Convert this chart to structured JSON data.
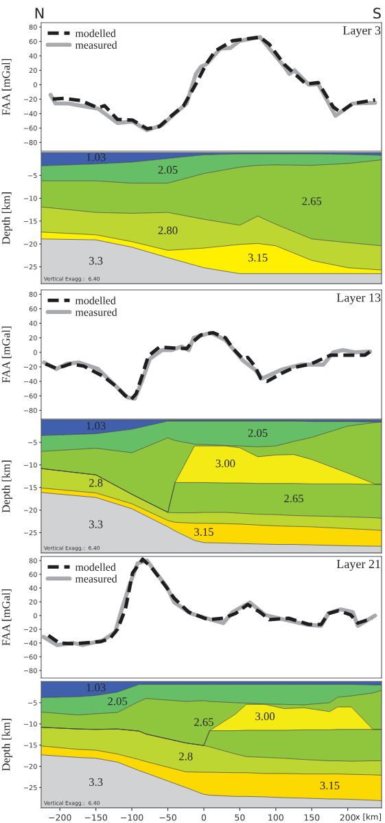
{
  "chart_data": [
    {
      "type": "line",
      "title": "Layer 3",
      "ylabel": "FAA [mGal]",
      "annotations": [
        "N",
        "S"
      ],
      "xlim": [
        -226,
        247
      ],
      "ylim": [
        -92,
        86
      ],
      "yticks": [
        -80,
        -60,
        -40,
        -20,
        0,
        20,
        40,
        60,
        80
      ],
      "tick_labels": "y",
      "legend": "top left",
      "series": [
        {
          "name": "modelled",
          "color": "#1e1e1e",
          "line_style": "dashed",
          "x": [
            -210,
            -194,
            -171,
            -147,
            -138,
            -120,
            -99,
            -79,
            -62,
            -45,
            -28,
            -11,
            3,
            16,
            40,
            78,
            91,
            112,
            142,
            159,
            180,
            190,
            207,
            238
          ],
          "values": [
            -20,
            -19,
            -22,
            -32,
            -29,
            -48,
            -49,
            -61,
            -58,
            -43,
            -29,
            1,
            28,
            47,
            61,
            66,
            56,
            28,
            1,
            3,
            -31,
            -38,
            -26,
            -21
          ]
        },
        {
          "name": "measured",
          "color": "#a9aaad",
          "line_style": "solid",
          "x": [
            -213,
            -206,
            -188,
            -171,
            -147,
            -120,
            -99,
            -79,
            -58,
            -45,
            -24,
            -11,
            -4,
            3,
            23,
            37,
            50,
            78,
            112,
            119,
            126,
            146,
            159,
            183,
            207,
            238
          ],
          "values": [
            -14,
            -26,
            -26,
            -29,
            -33,
            -53,
            -51,
            -63,
            -56,
            -44,
            -26,
            15,
            25,
            28,
            50,
            51,
            61,
            66,
            25,
            15,
            20,
            0,
            1,
            -43,
            -26,
            -25
          ]
        }
      ]
    },
    {
      "type": "area",
      "stacked": true,
      "ylabel": "Depth [km]",
      "xlim": [
        -226,
        247
      ],
      "ylim": [
        -28.7,
        0
      ],
      "yticks": [
        -25,
        -20,
        -15,
        -10,
        -5
      ],
      "tick_labels": "y",
      "x": [
        -226,
        -150,
        -100,
        -50,
        0,
        50,
        75,
        100,
        150,
        200,
        247
      ],
      "annotations": [
        "Vertical Exagg.:  6.40"
      ],
      "series": [
        {
          "name": "1.03",
          "color": "#4060ae",
          "values": [
            -2.9,
            -2.5,
            -2.1,
            -1.3,
            -0.5,
            -0.3,
            -0.3,
            -0.3,
            -0.3,
            -0.4,
            -0.6
          ]
        },
        {
          "name": "2.05",
          "color": "#66be66",
          "values": [
            -3.3,
            -3.7,
            -4.6,
            -5.4,
            -4.1,
            -2.9,
            -2.5,
            -2.4,
            -2.5,
            -2.0,
            -1.0
          ]
        },
        {
          "name": "2.65",
          "color": "#8fc63e",
          "values": [
            -5.7,
            -6.9,
            -6.6,
            -6.4,
            -10.0,
            -12.7,
            -11.1,
            -13.0,
            -16.1,
            -17.3,
            -18.8
          ]
        },
        {
          "name": "2.80",
          "color": "#bdd631",
          "values": [
            -5.5,
            -4.9,
            -6.2,
            -8.3,
            -6.3,
            -4.2,
            -6.0,
            -4.7,
            -4.7,
            -5.5,
            -5.3
          ]
        },
        {
          "name": "3.15",
          "color": "#fff000",
          "values": [
            -1.5,
            -1.1,
            -1.2,
            -1.6,
            -4.3,
            -6.4,
            -6.6,
            -6.1,
            -2.9,
            -1.3,
            -0.8
          ]
        },
        {
          "name": "3.3",
          "color": "#d1d2d4",
          "values": [
            -9.8,
            -9.6,
            -8.0,
            -5.7,
            -3.5,
            -2.2,
            -2.2,
            -2.2,
            -2.2,
            -2.2,
            -2.2
          ]
        }
      ]
    },
    {
      "type": "line",
      "title": "Layer 13",
      "ylabel": "FAA [mGal]",
      "xlim": [
        -226,
        247
      ],
      "ylim": [
        -92,
        86
      ],
      "yticks": [
        -80,
        -60,
        -40,
        -20,
        0,
        20,
        40,
        60,
        80
      ],
      "tick_labels": "y",
      "legend": "top left",
      "series": [
        {
          "name": "modelled",
          "color": "#1e1e1e",
          "line_style": "dashed",
          "x": [
            -220,
            -205,
            -194,
            -186,
            -167,
            -140,
            -123,
            -109,
            -101,
            -94,
            -86,
            -77,
            -62,
            -24,
            -18,
            -4,
            13,
            30,
            40,
            54,
            61,
            71,
            79,
            88,
            108,
            125,
            149,
            176,
            193,
            224,
            231
          ],
          "values": [
            -16,
            -22,
            -19,
            -16,
            -19,
            -33,
            -46,
            -60,
            -65,
            -57,
            -33,
            -5,
            7,
            5,
            12,
            24,
            27,
            20,
            6,
            -9,
            -7,
            -19,
            -36,
            -40,
            -29,
            -21,
            -16,
            -4,
            -4,
            -4,
            1
          ]
        },
        {
          "name": "measured",
          "color": "#a9aaad",
          "line_style": "solid",
          "x": [
            -222,
            -205,
            -191,
            -174,
            -147,
            -123,
            -106,
            -96,
            -86,
            -75,
            -58,
            -45,
            -31,
            -21,
            -14,
            10,
            30,
            54,
            71,
            81,
            108,
            135,
            166,
            180,
            193,
            210,
            231
          ],
          "values": [
            -14,
            -23,
            -16,
            -14,
            -23,
            -46,
            -62,
            -64,
            -40,
            -9,
            3,
            3,
            8,
            3,
            20,
            27,
            17,
            -11,
            -24,
            -36,
            -24,
            -17,
            -17,
            0,
            3,
            0,
            1
          ]
        }
      ]
    },
    {
      "type": "area",
      "stacked": true,
      "ylabel": "Depth [km]",
      "xlim": [
        -226,
        247
      ],
      "ylim": [
        -29.5,
        0
      ],
      "yticks": [
        -25,
        -20,
        -15,
        -10,
        -5
      ],
      "tick_labels": "y",
      "x": [
        -226,
        -150,
        -100,
        -50,
        -40,
        -13,
        0,
        30,
        50,
        75,
        100,
        125,
        150,
        200,
        239,
        247
      ],
      "annotations": [
        "Vertical Exagg.:  6.40"
      ],
      "series": [
        {
          "name": "1.03",
          "color": "#4060ae",
          "values": [
            -3.5,
            -3.1,
            -2.1,
            -0.3,
            -0.3,
            -0.3,
            -0.3,
            -0.3,
            -0.3,
            -0.3,
            -0.3,
            -0.3,
            -0.4,
            -0.4,
            -0.5,
            -0.5
          ]
        },
        {
          "name": "2.05",
          "color": "#66be66",
          "values": [
            -3.5,
            -3.2,
            -5.2,
            -3.7,
            -4.3,
            -5.1,
            -5.2,
            -5.4,
            -5.5,
            -5.7,
            -5.5,
            -4.5,
            -3.5,
            -1.0,
            -0.1,
            0.0
          ]
        },
        {
          "color": "#8fc63e",
          "values": [
            -3.8,
            -5.9,
            -9.2,
            -16.5,
            -9.3,
            -0.4,
            -0.3,
            -0.1,
            -0.4,
            -2.2,
            -2.0,
            -2.9,
            -4.9,
            -10.4,
            -13.7,
            -13.8
          ]
        },
        {
          "name": "3.00",
          "color": "#f4ea14",
          "values": [
            0,
            0,
            0,
            0,
            0,
            -8.1,
            -8.1,
            -8.2,
            -7.8,
            -5.9,
            -6.3,
            -6.4,
            -5.4,
            -2.4,
            0,
            0
          ]
        },
        {
          "name": "2.65",
          "color": "#8fc63e",
          "values": [
            0,
            0,
            0,
            0,
            -6.7,
            -6.7,
            -6.6,
            -6.5,
            -6.7,
            -6.8,
            -6.9,
            -7.1,
            -7.1,
            -7.3,
            -7.4,
            -7.5
          ]
        },
        {
          "name": "2.8",
          "color": "#bdd631",
          "values": [
            -4.3,
            -4.0,
            -2.1,
            -1.8,
            -2.1,
            -2.3,
            -2.4,
            -2.5,
            -2.4,
            -2.4,
            -2.5,
            -2.4,
            -2.4,
            -2.6,
            -2.7,
            -2.7
          ]
        },
        {
          "name": "3.15",
          "color": "#fcd900",
          "values": [
            -1.0,
            -1.0,
            -1.1,
            -1.4,
            -1.9,
            -3.8,
            -4.3,
            -4.3,
            -4.3,
            -4.2,
            -4.1,
            -4.0,
            -4.0,
            -3.8,
            -3.6,
            -3.5
          ]
        },
        {
          "name": "3.3",
          "color": "#d1d2d4",
          "values": [
            -13.4,
            -12.3,
            -9.8,
            -5.8,
            -4.9,
            -2.8,
            -2.3,
            -2.2,
            -2.1,
            -2.0,
            -1.9,
            -1.9,
            -1.8,
            -1.6,
            -1.5,
            -1.5
          ]
        }
      ]
    },
    {
      "type": "line",
      "title": "Layer 21",
      "ylabel": "FAA [mGal]",
      "xlim": [
        -226,
        247
      ],
      "ylim": [
        -91,
        86
      ],
      "yticks": [
        -80,
        -60,
        -40,
        -20,
        0,
        20,
        40,
        60,
        80
      ],
      "tick_labels": "y",
      "legend": "top left",
      "series": [
        {
          "name": "modelled",
          "color": "#1e1e1e",
          "line_style": "dashed",
          "x": [
            -216,
            -201,
            -181,
            -143,
            -130,
            -120,
            -109,
            -99,
            -85,
            -72,
            -54,
            -41,
            -21,
            6,
            27,
            44,
            61,
            78,
            91,
            118,
            146,
            163,
            173,
            187,
            204,
            214,
            234
          ],
          "values": [
            -29,
            -40,
            -41,
            -38,
            -33,
            -20,
            9,
            62,
            82,
            69,
            44,
            25,
            5,
            -6,
            -4,
            3,
            16,
            5,
            -6,
            -4,
            -13,
            -13,
            3,
            7,
            1,
            -11,
            -4
          ]
        },
        {
          "name": "measured",
          "color": "#a9aaad",
          "line_style": "solid",
          "x": [
            -223,
            -204,
            -181,
            -168,
            -140,
            -123,
            -114,
            -102,
            -92,
            -79,
            -51,
            -41,
            -18,
            10,
            27,
            40,
            64,
            85,
            112,
            142,
            163,
            173,
            190,
            207,
            214,
            238
          ],
          "values": [
            -31,
            -43,
            -40,
            -43,
            -36,
            -24,
            9,
            48,
            76,
            80,
            41,
            19,
            3,
            -6,
            -11,
            5,
            19,
            1,
            -6,
            -13,
            -15,
            3,
            9,
            5,
            -15,
            0
          ]
        }
      ]
    },
    {
      "type": "area",
      "stacked": true,
      "ylabel": "Depth [km]",
      "xlabel": "x [km]",
      "xlim": [
        -226,
        247
      ],
      "ylim": [
        -29.8,
        0
      ],
      "yticks": [
        -25,
        -20,
        -15,
        -10,
        -5
      ],
      "xticks": [
        -200,
        -150,
        -100,
        -50,
        0,
        50,
        100,
        150,
        200
      ],
      "x": [
        -226,
        -175,
        -150,
        -120,
        -90,
        -80,
        -25,
        0,
        8,
        44,
        59,
        85,
        112,
        139,
        175,
        186,
        205,
        235,
        247
      ],
      "annotations": [
        "Vertical Exagg.:  6.40"
      ],
      "series": [
        {
          "name": "1.03",
          "color": "#4060ae",
          "values": [
            -3.8,
            -3.6,
            -3.3,
            -2.5,
            -0.7,
            -0.7,
            -0.7,
            -0.7,
            -0.7,
            -0.7,
            -0.7,
            -0.7,
            -0.7,
            -0.7,
            -0.7,
            -0.7,
            -0.7,
            -0.8,
            -0.8
          ]
        },
        {
          "name": "2.05",
          "color": "#66be66",
          "values": [
            -3.4,
            -4.3,
            -4.3,
            -4.8,
            -4.0,
            -3.3,
            -4.0,
            -3.8,
            -4.0,
            -4.3,
            -4.4,
            -4.6,
            -4.7,
            -4.8,
            -4.3,
            -3.0,
            -2.7,
            -1.9,
            -1.3
          ]
        },
        {
          "name": "2.65",
          "color": "#8fc63e",
          "values": [
            -3.6,
            -3.3,
            -3.7,
            -3.9,
            -7.0,
            -8.4,
            -9.8,
            -10.6,
            -6.9,
            -2.7,
            -0.3,
            -0.1,
            -1.0,
            -0.7,
            -2.1,
            -2.3,
            -2.6,
            -8.6,
            -9.2
          ]
        },
        {
          "name": "3.00",
          "color": "#f4ea14",
          "values": [
            0,
            0,
            0,
            0,
            0,
            0,
            0,
            0,
            0,
            -3.9,
            -6.1,
            -6.1,
            -5.1,
            -5.2,
            -4.3,
            -5.3,
            -5.3,
            0,
            0
          ]
        },
        {
          "color": "#8fc63e",
          "values": [
            0,
            0,
            0,
            0,
            0,
            0,
            0,
            0,
            -3.8,
            -5.5,
            -6.2,
            -6.4,
            -6.6,
            -7.0,
            -7.3,
            -7.4,
            -7.5,
            -7.4,
            -7.4
          ]
        },
        {
          "name": "2.8",
          "color": "#bdd631",
          "values": [
            -4.4,
            -4.8,
            -4.9,
            -5.9,
            -6.7,
            -6.5,
            -6.8,
            -6.3,
            -6.0,
            -4.4,
            -3.8,
            -3.8,
            -3.6,
            -3.4,
            -3.1,
            -3.1,
            -3.1,
            -3.3,
            -3.4
          ]
        },
        {
          "name": "3.15",
          "color": "#fcd900",
          "values": [
            -2.1,
            -1.9,
            -1.9,
            -1.9,
            -2.6,
            -2.7,
            -3.7,
            -5.2,
            -5.4,
            -5.6,
            -5.6,
            -5.5,
            -5.7,
            -5.7,
            -5.9,
            -5.9,
            -5.9,
            -6.0,
            -6.0
          ]
        },
        {
          "name": "3.3",
          "color": "#d1d2d4",
          "values": [
            -12.5,
            -11.9,
            -11.7,
            -10.8,
            -8.8,
            -8.2,
            -4.8,
            -3.2,
            -3.0,
            -2.7,
            -2.7,
            -2.6,
            -2.4,
            -2.3,
            -2.1,
            -2.1,
            -2.0,
            -1.8,
            -1.7
          ]
        }
      ]
    }
  ]
}
